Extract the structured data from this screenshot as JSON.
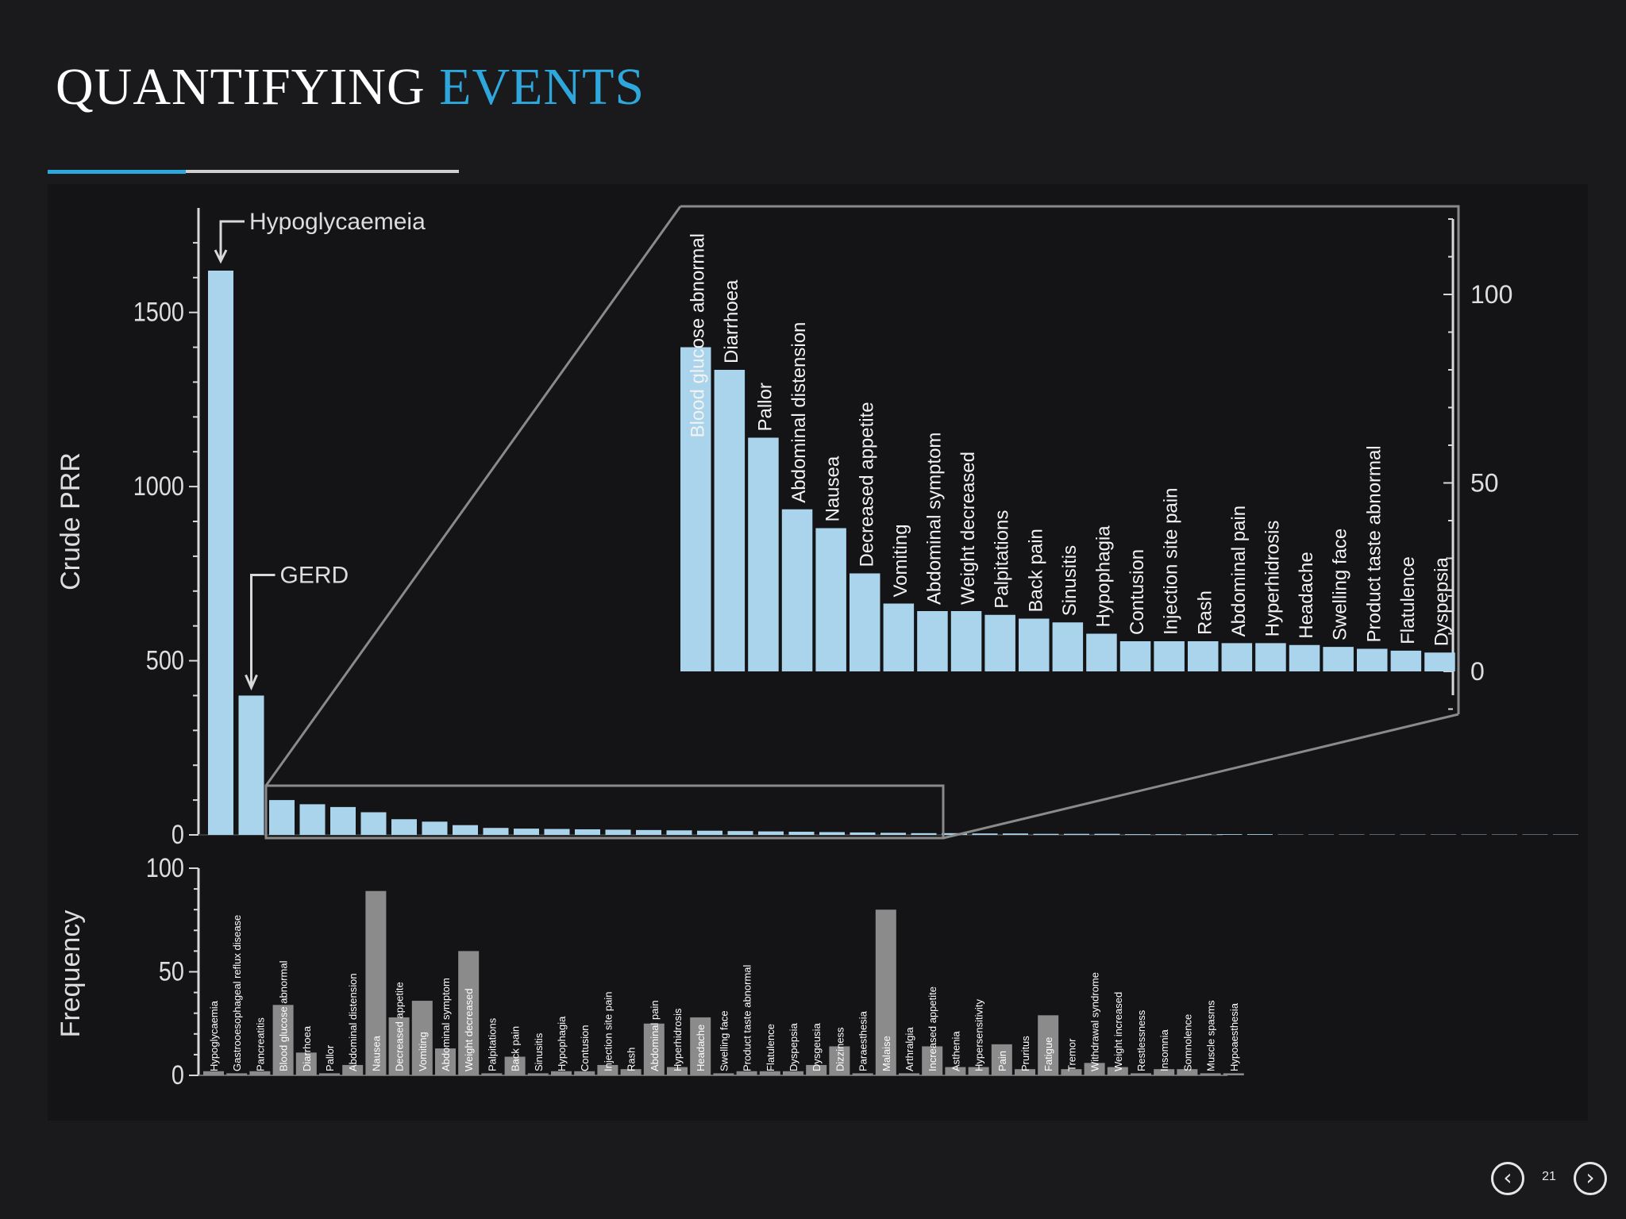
{
  "slide": {
    "title_main": "QUANTIFYING",
    "title_accent": "EVENTS",
    "page_number": "21",
    "accent_color": "#2ea8dc",
    "prev_icon": "chevron-left-icon",
    "next_icon": "chevron-right-icon"
  },
  "chart_data": [
    {
      "type": "bar",
      "ylabel": "Crude PRR",
      "ylim": [
        0,
        1800
      ],
      "yticks": [
        0,
        500,
        1000,
        1500
      ],
      "bar_color": "#a9d4ec",
      "annotations": [
        "Hypoglycaemeia",
        "GERD"
      ],
      "values": [
        1620,
        400,
        100,
        88,
        80,
        65,
        45,
        38,
        28,
        20,
        18,
        17,
        16,
        15,
        14,
        13,
        12,
        11,
        10,
        9,
        8,
        7,
        6,
        5,
        5,
        4,
        4,
        3,
        3,
        3,
        2,
        2,
        2,
        2,
        2,
        1,
        1,
        1,
        1,
        1,
        1,
        1,
        1,
        1,
        1
      ]
    },
    {
      "type": "bar",
      "inset": true,
      "ylim": [
        0,
        120
      ],
      "yticks": [
        0,
        50,
        100
      ],
      "bar_color": "#a9d4ec",
      "categories": [
        "Blood glucose abnormal",
        "Diarrhoea",
        "Pallor",
        "Abdominal distension",
        "Nausea",
        "Decreased appetite",
        "Vomiting",
        "Abdominal symptom",
        "Weight decreased",
        "Palpitations",
        "Back pain",
        "Sinusitis",
        "Hypophagia",
        "Contusion",
        "Injection site pain",
        "Rash",
        "Abdominal pain",
        "Hyperhidrosis",
        "Headache",
        "Swelling face",
        "Product taste abnormal",
        "Flatulence",
        "Dyspepsia"
      ],
      "values": [
        86,
        80,
        62,
        43,
        38,
        26,
        18,
        16,
        16,
        15,
        14,
        13,
        10,
        8,
        8,
        8,
        7.5,
        7.5,
        7,
        6.5,
        6,
        5.5,
        5
      ]
    },
    {
      "type": "bar",
      "ylabel": "Frequency",
      "ylim": [
        0,
        100
      ],
      "yticks": [
        0,
        50,
        100
      ],
      "bar_color": "#8b8b8b",
      "categories": [
        "Hypoglycaemia",
        "Gastrooesophageal reflux disease",
        "Pancreatitis",
        "Blood glucose abnormal",
        "Diarrhoea",
        "Pallor",
        "Abdominal distension",
        "Nausea",
        "Decreased appetite",
        "Vomiting",
        "Abdominal symptom",
        "Weight decreased",
        "Palpitations",
        "Back pain",
        "Sinusitis",
        "Hypophagia",
        "Contusion",
        "Injection site pain",
        "Rash",
        "Abdominal pain",
        "Hyperhidrosis",
        "Headache",
        "Swelling face",
        "Product taste abnormal",
        "Flatulence",
        "Dyspepsia",
        "Dysgeusia",
        "Dizziness",
        "Paraesthesia",
        "Malaise",
        "Arthralgia",
        "Increased appetite",
        "Asthenia",
        "Hypersensitivity",
        "Pain",
        "Pruritus",
        "Fatigue",
        "Tremor",
        "Withdrawal syndrome",
        "Weight increased",
        "Restlessness",
        "Insomnia",
        "Somnolence",
        "Muscle spasms",
        "Hypoaesthesia"
      ],
      "values": [
        2,
        1,
        2,
        34,
        11,
        1,
        5,
        89,
        28,
        36,
        13,
        60,
        1,
        9,
        1,
        2,
        2,
        5,
        3,
        25,
        4,
        28,
        1,
        2,
        2,
        2,
        5,
        14,
        1,
        80,
        1,
        14,
        4,
        4,
        15,
        3,
        29,
        3,
        6,
        4,
        1,
        3,
        3,
        1,
        1
      ]
    }
  ]
}
